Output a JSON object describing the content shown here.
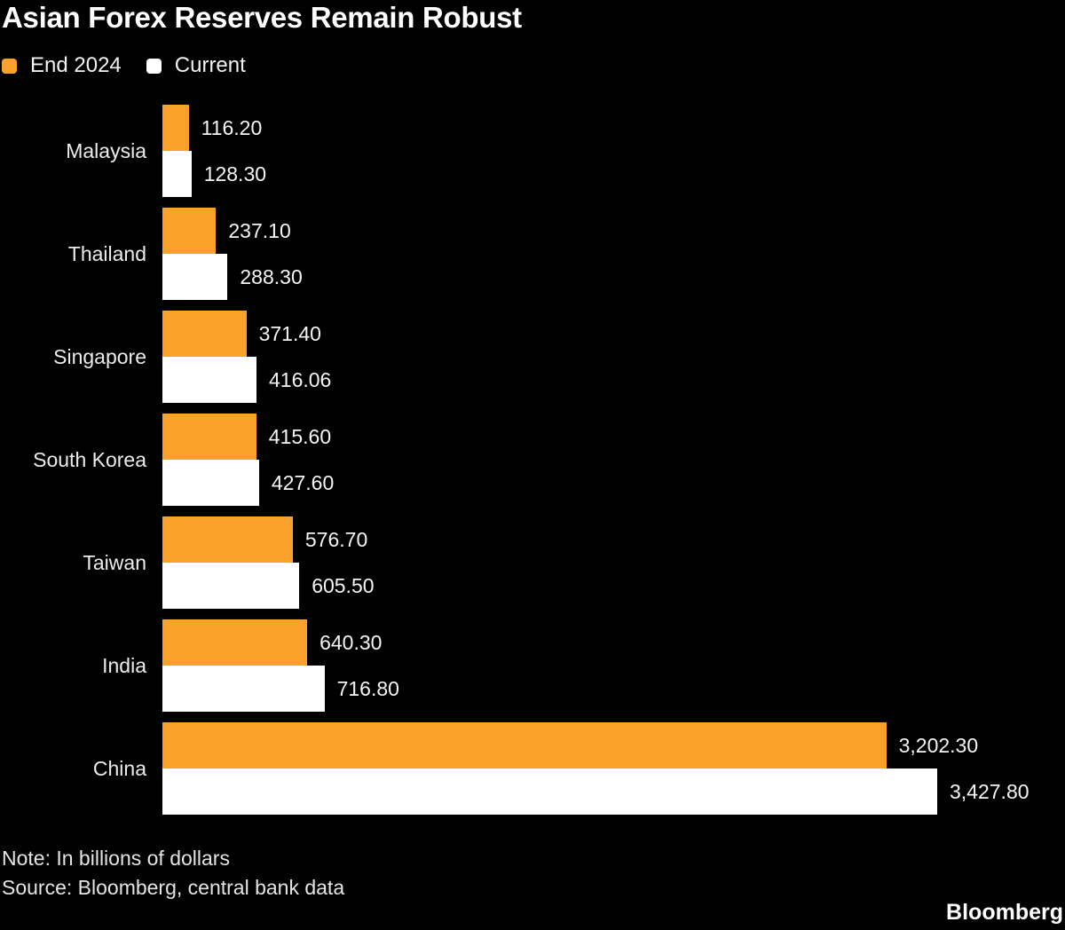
{
  "title": "Asian Forex Reserves Remain Robust",
  "legend": {
    "end2024_label": "End 2024",
    "current_label": "Current"
  },
  "colors": {
    "background": "#000000",
    "end2024": "#FAA12B",
    "current": "#FFFFFF"
  },
  "chart_data": {
    "type": "bar",
    "orientation": "horizontal",
    "title": "Asian Forex Reserves Remain Robust",
    "unit": "billions of dollars",
    "xlim": [
      0,
      3427.8
    ],
    "grid": false,
    "legend_position": "top-left",
    "categories": [
      "Malaysia",
      "Thailand",
      "Singapore",
      "South Korea",
      "Taiwan",
      "India",
      "China"
    ],
    "series": [
      {
        "name": "End 2024",
        "color": "#FAA12B",
        "values": [
          116.2,
          237.1,
          371.4,
          415.6,
          576.7,
          640.3,
          3202.3
        ],
        "labels": [
          "116.20",
          "237.10",
          "371.40",
          "415.60",
          "576.70",
          "640.30",
          "3,202.30"
        ]
      },
      {
        "name": "Current",
        "color": "#FFFFFF",
        "values": [
          128.3,
          288.3,
          416.06,
          427.6,
          605.5,
          716.8,
          3427.8
        ],
        "labels": [
          "128.30",
          "288.30",
          "416.06",
          "427.60",
          "605.50",
          "716.80",
          "3,427.80"
        ]
      }
    ]
  },
  "footer": {
    "note": "Note: In billions of dollars",
    "source": "Source: Bloomberg, central bank data",
    "logo": "Bloomberg"
  }
}
